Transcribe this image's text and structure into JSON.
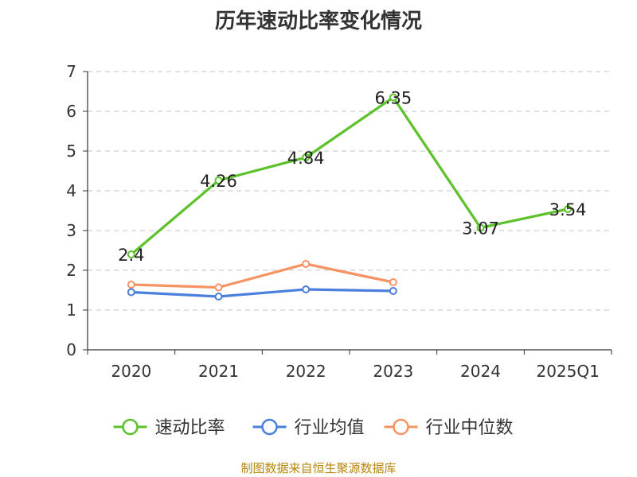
{
  "chart_data": {
    "type": "line",
    "title": "历年速动比率变化情况",
    "xlabel": "",
    "ylabel": "",
    "categories": [
      "2020",
      "2021",
      "2022",
      "2023",
      "2024",
      "2025Q1"
    ],
    "ylim": [
      0,
      7
    ],
    "yticks": [
      0,
      1,
      2,
      3,
      4,
      5,
      6,
      7
    ],
    "grid": true,
    "legend_position": "bottom",
    "series": [
      {
        "name": "速动比率",
        "color": "#5cc22a",
        "values": [
          2.4,
          4.26,
          4.84,
          6.35,
          3.07,
          3.54
        ],
        "show_labels": true
      },
      {
        "name": "行业均值",
        "color": "#4a7fdc",
        "values": [
          1.45,
          1.34,
          1.52,
          1.48,
          null,
          null
        ],
        "show_labels": false
      },
      {
        "name": "行业中位数",
        "color": "#f59363",
        "values": [
          1.64,
          1.57,
          2.16,
          1.7,
          null,
          null
        ],
        "show_labels": false
      }
    ]
  },
  "footer": {
    "source": "制图数据来自恒生聚源数据库"
  }
}
